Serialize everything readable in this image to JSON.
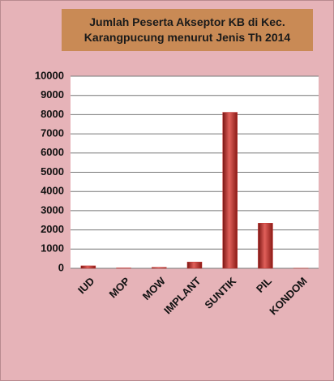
{
  "chart_data": {
    "type": "bar",
    "title": "Jumlah Peserta Akseptor KB di Kec. Karangpucung menurut Jenis Th 2014",
    "categories": [
      "IUD",
      "MOP",
      "MOW",
      "IMPLANT",
      "SUNTIK",
      "PIL",
      "KONDOM"
    ],
    "values": [
      130,
      20,
      50,
      330,
      8120,
      2350,
      5
    ],
    "color": "#c0302c",
    "ylim": [
      0,
      10000
    ],
    "yticks": [
      0,
      1000,
      2000,
      3000,
      4000,
      5000,
      6000,
      7000,
      8000,
      9000,
      10000
    ],
    "grid": true
  }
}
